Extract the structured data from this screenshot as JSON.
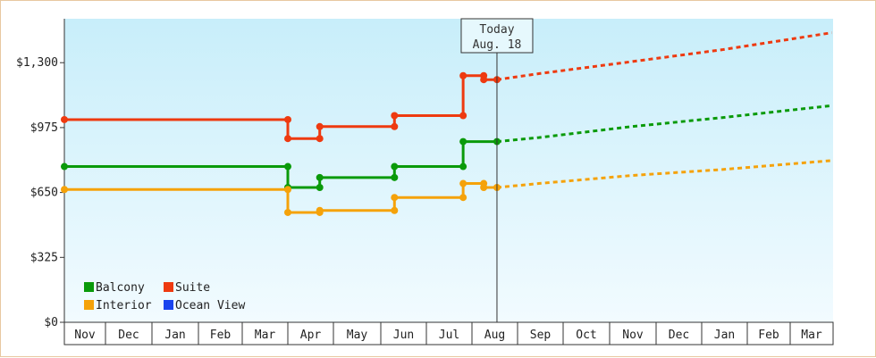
{
  "chart_data": {
    "type": "line",
    "title": "",
    "xlabel": "",
    "ylabel": "",
    "y_ticks": [
      "$0",
      "$325",
      "$650",
      "$975",
      "$1,300"
    ],
    "y_tick_values": [
      0,
      325,
      650,
      975,
      1300
    ],
    "ylim": [
      0,
      1520
    ],
    "months": [
      "Nov",
      "Dec",
      "Jan",
      "Feb",
      "Mar",
      "Apr",
      "May",
      "Jun",
      "Jul",
      "Aug",
      "Sep",
      "Oct",
      "Nov",
      "Dec",
      "Jan",
      "Feb",
      "Mar"
    ],
    "today": {
      "line1": "Today",
      "line2": "Aug. 18",
      "x": "Aug 18"
    },
    "grid": false,
    "legend_position": "bottom-left",
    "series": [
      {
        "name": "Balcony",
        "color": "#0a9a0a",
        "history": [
          [
            "Nov 1",
            780
          ],
          [
            "Apr 1",
            780
          ],
          [
            "Apr 1",
            675
          ],
          [
            "Apr 22",
            675
          ],
          [
            "Apr 22",
            725
          ],
          [
            "Jun 10",
            725
          ],
          [
            "Jun 10",
            780
          ],
          [
            "Jul 26",
            780
          ],
          [
            "Jul 26",
            905
          ],
          [
            "Aug 18",
            905
          ]
        ],
        "forecast": [
          [
            "Aug 18",
            905
          ],
          [
            "Sep 15",
            925
          ],
          [
            "Nov 15",
            980
          ],
          [
            "Jan 15",
            1025
          ],
          [
            "Mar 31",
            1085
          ]
        ]
      },
      {
        "name": "Suite",
        "color": "#ee3a10",
        "history": [
          [
            "Nov 1",
            1015
          ],
          [
            "Apr 1",
            1015
          ],
          [
            "Apr 1",
            920
          ],
          [
            "Apr 22",
            920
          ],
          [
            "Apr 22",
            980
          ],
          [
            "Jun 10",
            980
          ],
          [
            "Jun 10",
            1035
          ],
          [
            "Jul 26",
            1035
          ],
          [
            "Jul 26",
            1235
          ],
          [
            "Aug 9",
            1235
          ],
          [
            "Aug 9",
            1215
          ],
          [
            "Aug 18",
            1215
          ]
        ],
        "forecast": [
          [
            "Aug 18",
            1215
          ],
          [
            "Sep 15",
            1245
          ],
          [
            "Nov 15",
            1305
          ],
          [
            "Jan 15",
            1365
          ],
          [
            "Mar 31",
            1450
          ]
        ]
      },
      {
        "name": "Interior",
        "color": "#f5a20a",
        "history": [
          [
            "Nov 1",
            665
          ],
          [
            "Apr 1",
            665
          ],
          [
            "Apr 1",
            550
          ],
          [
            "Apr 22",
            550
          ],
          [
            "Apr 22",
            560
          ],
          [
            "Jun 10",
            560
          ],
          [
            "Jun 10",
            625
          ],
          [
            "Jul 26",
            625
          ],
          [
            "Jul 26",
            695
          ],
          [
            "Aug 9",
            695
          ],
          [
            "Aug 9",
            675
          ],
          [
            "Aug 18",
            675
          ]
        ],
        "forecast": [
          [
            "Aug 18",
            675
          ],
          [
            "Sep 15",
            695
          ],
          [
            "Nov 15",
            735
          ],
          [
            "Jan 15",
            765
          ],
          [
            "Mar 31",
            810
          ]
        ]
      },
      {
        "name": "Ocean View",
        "color": "#1a44ee",
        "history": [],
        "forecast": []
      }
    ]
  }
}
